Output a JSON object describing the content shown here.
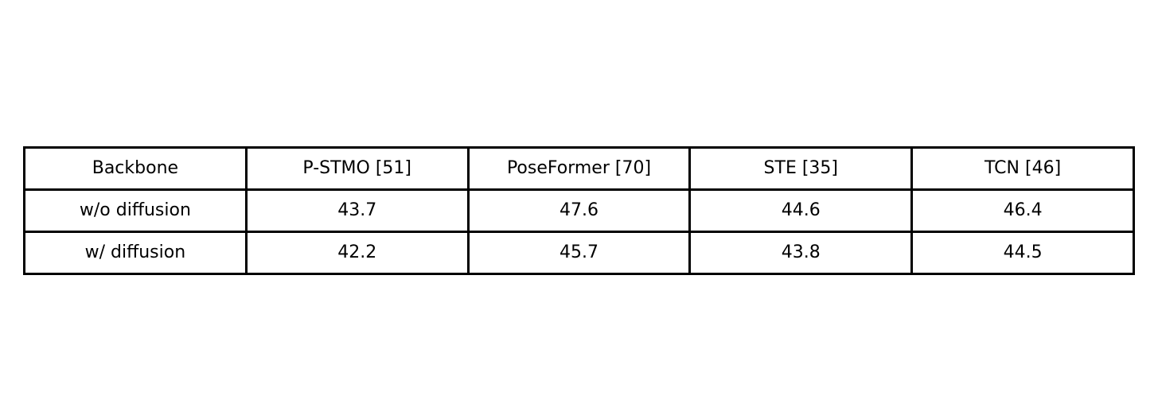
{
  "chart_data": {
    "type": "table",
    "columns": [
      "Backbone",
      "P-STMO [51]",
      "PoseFormer [70]",
      "STE [35]",
      "TCN [46]"
    ],
    "rows": [
      [
        "w/o diffusion",
        "43.7",
        "47.6",
        "44.6",
        "46.4"
      ],
      [
        "w/ diffusion",
        "42.2",
        "45.7",
        "43.8",
        "44.5"
      ]
    ]
  }
}
